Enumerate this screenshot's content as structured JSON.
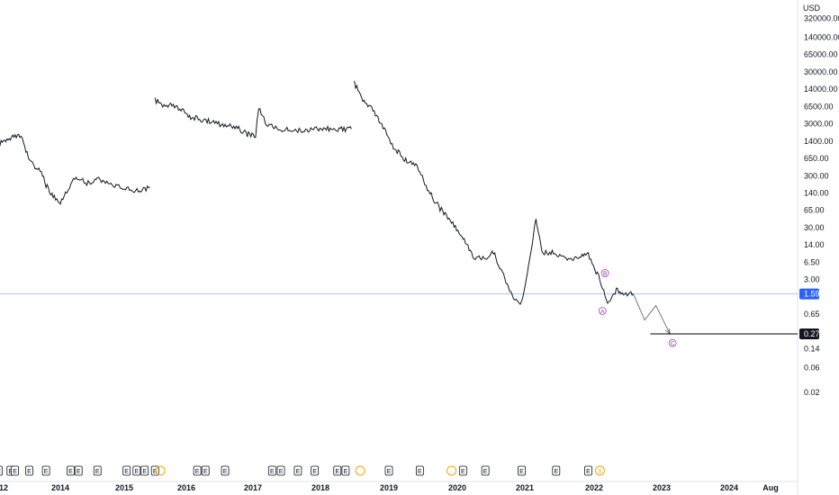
{
  "chart_data": {
    "type": "line",
    "currency": "USD",
    "y_scale": "log",
    "y_ticks": [
      "320000.00",
      "140000.00",
      "65000.00",
      "30000.00",
      "14000.00",
      "6500.00",
      "3000.00",
      "1400.00",
      "650.00",
      "300.00",
      "140.00",
      "65.00",
      "30.00",
      "14.00",
      "6.50",
      "3.00",
      "1.59",
      "0.65",
      "0.27",
      "0.14",
      "0.06",
      "0.02"
    ],
    "y_tick_values": [
      320000,
      140000,
      65000,
      30000,
      14000,
      6500,
      3000,
      1400,
      650,
      300,
      140,
      65,
      30,
      14,
      6.5,
      3,
      1.59,
      0.65,
      0.27,
      0.14,
      0.06,
      0.02
    ],
    "x_ticks": [
      "12",
      "2014",
      "2015",
      "2016",
      "2017",
      "2018",
      "2019",
      "2020",
      "2021",
      "2022",
      "2023",
      "2024",
      "Aug"
    ],
    "x_tick_dates": [
      "2013-01-01",
      "2014-01-01",
      "2015-01-01",
      "2016-01-01",
      "2017-01-01",
      "2018-01-01",
      "2019-01-01",
      "2020-01-01",
      "2021-01-01",
      "2022-01-01",
      "2023-01-01",
      "2024-01-01",
      "2024-08-01"
    ],
    "last_price": {
      "label": "1.59",
      "value": 1.59,
      "color": "#2962ff"
    },
    "target_price": {
      "label": "0.27",
      "value": 0.27
    },
    "series": [
      {
        "x": [
          "2012-12-01",
          "2013-01-15",
          "2013-03-01",
          "2013-04-15",
          "2013-05-10",
          "2013-06-01",
          "2013-07-15",
          "2013-09-01",
          "2013-10-01",
          "2013-11-01",
          "2014-01-01",
          "2014-02-15",
          "2014-04-01",
          "2014-06-01",
          "2014-08-01",
          "2014-10-01",
          "2014-12-01",
          "2015-02-01",
          "2015-04-01",
          "2015-06-01"
        ],
        "values": [
          1200,
          1500,
          1700,
          1700,
          1300,
          800,
          450,
          350,
          200,
          140,
          95,
          170,
          300,
          210,
          260,
          220,
          190,
          170,
          155,
          180
        ]
      },
      {
        "x": [
          "2015-07-01",
          "2015-08-15",
          "2015-10-01",
          "2015-12-01",
          "2016-02-01",
          "2016-05-01",
          "2016-08-01",
          "2016-10-01",
          "2016-12-01",
          "2017-01-15",
          "2017-02-01",
          "2017-03-15",
          "2017-06-01",
          "2017-09-01",
          "2017-12-01",
          "2018-03-01",
          "2018-06-15"
        ],
        "values": [
          8500,
          7000,
          7000,
          5500,
          4000,
          3400,
          2800,
          2600,
          1900,
          1800,
          6500,
          3000,
          2400,
          2200,
          2400,
          2400,
          2400
        ]
      },
      {
        "x": [
          "2018-07-01",
          "2018-08-15",
          "2018-10-01",
          "2018-12-01",
          "2019-02-01",
          "2019-04-01",
          "2019-06-01",
          "2019-08-01",
          "2019-10-01",
          "2019-12-01",
          "2020-02-01",
          "2020-04-01",
          "2020-06-01",
          "2020-07-15",
          "2020-09-01",
          "2020-11-01",
          "2020-12-15",
          "2021-01-15",
          "2021-03-01",
          "2021-04-01",
          "2021-06-01",
          "2021-09-01",
          "2021-12-01",
          "2022-02-01",
          "2022-03-15",
          "2022-05-01",
          "2022-06-15",
          "2022-08-01"
        ],
        "values": [
          18000,
          9000,
          6000,
          2500,
          1000,
          600,
          450,
          150,
          70,
          40,
          20,
          8,
          8,
          10,
          4,
          1.3,
          1.1,
          4.5,
          45,
          10,
          10,
          7,
          9,
          3,
          1,
          1.9,
          1.6,
          1.6
        ]
      }
    ],
    "projection": {
      "x": [
        "2022-08-01",
        "2022-10-01",
        "2022-12-01",
        "2023-02-15"
      ],
      "values": [
        1.59,
        0.5,
        0.95,
        0.27
      ]
    },
    "wave_labels": [
      {
        "text": "A",
        "x": "2022-02-15",
        "value": 0.75
      },
      {
        "text": "B",
        "x": "2022-03-01",
        "value": 4.0
      },
      {
        "text": "C",
        "x": "2023-03-01",
        "value": 0.18
      }
    ],
    "event_markers": [
      {
        "label": "E",
        "color": "#131722",
        "x": "2012-12-01"
      },
      {
        "label": "E",
        "color": "#131722",
        "x": "2013-02-15"
      },
      {
        "label": "E",
        "color": "#131722",
        "x": "2013-03-15"
      },
      {
        "label": "E",
        "color": "#131722",
        "x": "2013-06-15"
      },
      {
        "label": "E",
        "color": "#131722",
        "x": "2013-10-01"
      },
      {
        "label": "E",
        "color": "#131722",
        "x": "2014-03-01"
      },
      {
        "label": "E",
        "color": "#131722",
        "x": "2014-04-15"
      },
      {
        "label": "E",
        "color": "#131722",
        "x": "2014-08-01"
      },
      {
        "label": "E",
        "color": "#131722",
        "x": "2015-01-15"
      },
      {
        "label": "E",
        "color": "#131722",
        "x": "2015-03-15"
      },
      {
        "label": "E",
        "color": "#131722",
        "x": "2015-05-01"
      },
      {
        "label": "E",
        "color": "#131722",
        "x": "2015-07-01"
      },
      {
        "label": "E",
        "color": "#131722",
        "x": "2016-03-01"
      },
      {
        "label": "E",
        "color": "#131722",
        "x": "2016-04-15"
      },
      {
        "label": "E",
        "color": "#131722",
        "x": "2016-08-01"
      },
      {
        "label": "E",
        "color": "#131722",
        "x": "2017-04-15"
      },
      {
        "label": "E",
        "color": "#131722",
        "x": "2017-06-01"
      },
      {
        "label": "E",
        "color": "#131722",
        "x": "2017-09-01"
      },
      {
        "label": "E",
        "color": "#131722",
        "x": "2017-12-01"
      },
      {
        "label": "E",
        "color": "#131722",
        "x": "2018-04-01"
      },
      {
        "label": "E",
        "color": "#131722",
        "x": "2018-05-15"
      },
      {
        "label": "E",
        "color": "#131722",
        "x": "2019-01-01"
      },
      {
        "label": "E",
        "color": "#131722",
        "x": "2019-06-15"
      },
      {
        "label": "E",
        "color": "#131722",
        "x": "2020-02-01"
      },
      {
        "label": "E",
        "color": "#131722",
        "x": "2020-06-01"
      },
      {
        "label": "E",
        "color": "#131722",
        "x": "2020-12-15"
      },
      {
        "label": "E",
        "color": "#131722",
        "x": "2021-06-15"
      },
      {
        "label": "E",
        "color": "#131722",
        "x": "2021-12-01"
      },
      {
        "label": "S",
        "color": "#f7a600",
        "x": "2022-02-01"
      }
    ],
    "split_marks": [
      {
        "x": "2015-08-01",
        "color": "#f7a600"
      },
      {
        "x": "2018-08-01",
        "color": "#f7a600"
      },
      {
        "x": "2019-12-01",
        "color": "#f7a600"
      }
    ],
    "colors": {
      "price": "#131722",
      "axis_text": "#131722",
      "last_line": "#2962ff",
      "wave": "#9c27b0",
      "target": "#000000"
    }
  }
}
